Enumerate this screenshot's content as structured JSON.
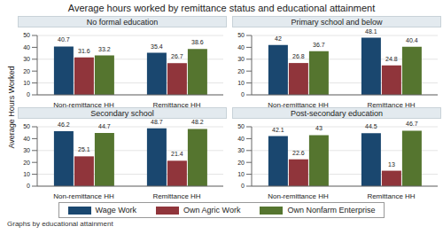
{
  "title": "Average hours worked by remittance status and educational attainment",
  "y_label": "Average Hours Worked",
  "note": "Graphs by educational attainment",
  "legend": "bottom",
  "chart_data": [
    {
      "type": "bar",
      "title": "No formal education",
      "categories": [
        "Non-remittance HH",
        "Remittance HH"
      ],
      "series": [
        {
          "name": "Wage Work",
          "color": "#1a476f",
          "values": [
            40.7,
            35.4
          ]
        },
        {
          "name": "Own Agric Work",
          "color": "#90353b",
          "values": [
            31.6,
            26.7
          ]
        },
        {
          "name": "Own Nonfarm Enterprise",
          "color": "#55752f",
          "values": [
            33.2,
            38.6
          ]
        }
      ],
      "ylim": [
        0,
        50
      ],
      "yticks": [
        0,
        10,
        20,
        30,
        40,
        50
      ],
      "grid": true,
      "data_labels": true
    },
    {
      "type": "bar",
      "title": "Primary school and below",
      "categories": [
        "Non-remittance HH",
        "Remittance HH"
      ],
      "series": [
        {
          "name": "Wage Work",
          "color": "#1a476f",
          "values": [
            42,
            48.1
          ]
        },
        {
          "name": "Own Agric Work",
          "color": "#90353b",
          "values": [
            26.8,
            24.8
          ]
        },
        {
          "name": "Own Nonfarm Enterprise",
          "color": "#55752f",
          "values": [
            36.7,
            40.4
          ]
        }
      ],
      "ylim": [
        0,
        50
      ],
      "yticks": [
        0,
        10,
        20,
        30,
        40,
        50
      ],
      "grid": true,
      "data_labels": true
    },
    {
      "type": "bar",
      "title": "Secondary school",
      "categories": [
        "Non-remittance HH",
        "Remittance HH"
      ],
      "series": [
        {
          "name": "Wage Work",
          "color": "#1a476f",
          "values": [
            46.2,
            48.7
          ]
        },
        {
          "name": "Own Agric Work",
          "color": "#90353b",
          "values": [
            25.1,
            21.4
          ]
        },
        {
          "name": "Own Nonfarm Enterprise",
          "color": "#55752f",
          "values": [
            44.7,
            48.2
          ]
        }
      ],
      "ylim": [
        0,
        50
      ],
      "yticks": [
        0,
        10,
        20,
        30,
        40,
        50
      ],
      "grid": true,
      "data_labels": true
    },
    {
      "type": "bar",
      "title": "Post-secondary education",
      "categories": [
        "Non-remittance HH",
        "Remittance HH"
      ],
      "series": [
        {
          "name": "Wage Work",
          "color": "#1a476f",
          "values": [
            42.1,
            44.5
          ]
        },
        {
          "name": "Own Agric Work",
          "color": "#90353b",
          "values": [
            22.6,
            13
          ]
        },
        {
          "name": "Own Nonfarm Enterprise",
          "color": "#55752f",
          "values": [
            43,
            46.7
          ]
        }
      ],
      "ylim": [
        0,
        50
      ],
      "yticks": [
        0,
        10,
        20,
        30,
        40,
        50
      ],
      "grid": true,
      "data_labels": true
    }
  ]
}
